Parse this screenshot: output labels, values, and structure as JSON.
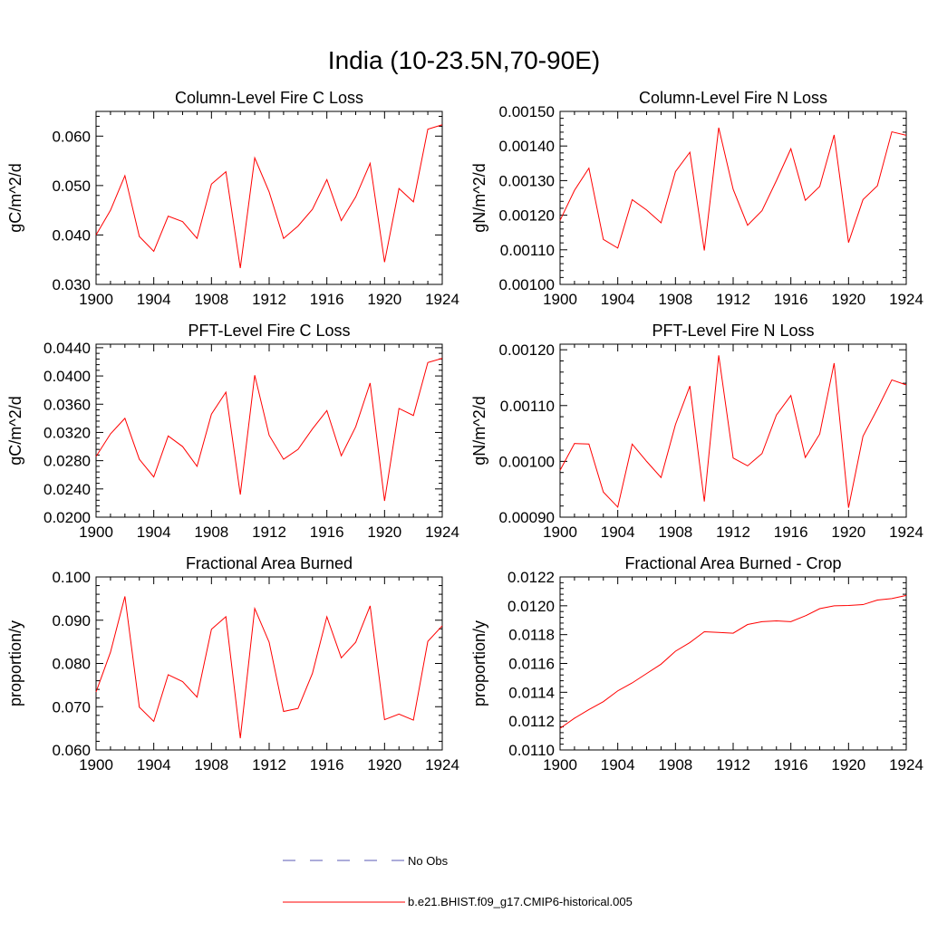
{
  "page_title": "India (10-23.5N,70-90E)",
  "colors": {
    "model": "#ff0000",
    "obs": "#5a5ab4",
    "axis": "#000000"
  },
  "legend": {
    "obs_label": "No Obs",
    "model_label": "b.e21.BHIST.f09_g17.CMIP6-historical.005"
  },
  "chart_data": [
    {
      "type": "line",
      "title": "Column-Level Fire C Loss",
      "ylabel": "gC/m^2/d",
      "xlim": [
        1900,
        1924
      ],
      "ylim": [
        0.03,
        0.065
      ],
      "xticks": [
        1900,
        1904,
        1908,
        1912,
        1916,
        1920,
        1924
      ],
      "yticks": [
        0.03,
        0.04,
        0.05,
        0.06
      ],
      "ytick_labels": [
        "0.030",
        "0.040",
        "0.050",
        "0.060"
      ],
      "x": [
        1900,
        1901,
        1902,
        1903,
        1904,
        1905,
        1906,
        1907,
        1908,
        1909,
        1910,
        1911,
        1912,
        1913,
        1914,
        1915,
        1916,
        1917,
        1918,
        1919,
        1920,
        1921,
        1922,
        1923,
        1924
      ],
      "series": [
        {
          "name": "b.e21.BHIST.f09_g17.CMIP6-historical.005",
          "values": [
            0.04,
            0.045,
            0.052,
            0.0397,
            0.0367,
            0.0438,
            0.0427,
            0.0393,
            0.0503,
            0.0528,
            0.0333,
            0.0556,
            0.0487,
            0.0393,
            0.0418,
            0.0452,
            0.0512,
            0.0429,
            0.0477,
            0.0545,
            0.0345,
            0.0494,
            0.0467,
            0.0614,
            0.0623
          ]
        }
      ]
    },
    {
      "type": "line",
      "title": "Column-Level Fire N Loss",
      "ylabel": "gN/m^2/d",
      "xlim": [
        1900,
        1924
      ],
      "ylim": [
        0.001,
        0.0015
      ],
      "xticks": [
        1900,
        1904,
        1908,
        1912,
        1916,
        1920,
        1924
      ],
      "yticks": [
        0.001,
        0.0011,
        0.0012,
        0.0013,
        0.0014,
        0.0015
      ],
      "ytick_labels": [
        "0.00100",
        "0.00110",
        "0.00120",
        "0.00130",
        "0.00140",
        "0.00150"
      ],
      "x": [
        1900,
        1901,
        1902,
        1903,
        1904,
        1905,
        1906,
        1907,
        1908,
        1909,
        1910,
        1911,
        1912,
        1913,
        1914,
        1915,
        1916,
        1917,
        1918,
        1919,
        1920,
        1921,
        1922,
        1923,
        1924
      ],
      "series": [
        {
          "name": "b.e21.BHIST.f09_g17.CMIP6-historical.005",
          "values": [
            0.001185,
            0.001272,
            0.001336,
            0.00113,
            0.001105,
            0.001245,
            0.001215,
            0.001178,
            0.001326,
            0.001382,
            0.001098,
            0.001453,
            0.001275,
            0.001171,
            0.001213,
            0.0013,
            0.001392,
            0.001243,
            0.001283,
            0.001432,
            0.001121,
            0.001245,
            0.001285,
            0.001441,
            0.001431
          ]
        }
      ]
    },
    {
      "type": "line",
      "title": "PFT-Level Fire C Loss",
      "ylabel": "gC/m^2/d",
      "xlim": [
        1900,
        1924
      ],
      "ylim": [
        0.02,
        0.0445
      ],
      "xticks": [
        1900,
        1904,
        1908,
        1912,
        1916,
        1920,
        1924
      ],
      "yticks": [
        0.02,
        0.024,
        0.028,
        0.032,
        0.036,
        0.04,
        0.044
      ],
      "ytick_labels": [
        "0.0200",
        "0.0240",
        "0.0280",
        "0.0320",
        "0.0360",
        "0.0400",
        "0.0440"
      ],
      "x": [
        1900,
        1901,
        1902,
        1903,
        1904,
        1905,
        1906,
        1907,
        1908,
        1909,
        1910,
        1911,
        1912,
        1913,
        1914,
        1915,
        1916,
        1917,
        1918,
        1919,
        1920,
        1921,
        1922,
        1923,
        1924
      ],
      "series": [
        {
          "name": "b.e21.BHIST.f09_g17.CMIP6-historical.005",
          "values": [
            0.0286,
            0.0318,
            0.034,
            0.0282,
            0.0257,
            0.0315,
            0.03,
            0.0272,
            0.0346,
            0.0377,
            0.0232,
            0.0401,
            0.0316,
            0.0282,
            0.0296,
            0.0325,
            0.0351,
            0.0287,
            0.0328,
            0.039,
            0.0223,
            0.0354,
            0.0344,
            0.0419,
            0.0425
          ]
        }
      ]
    },
    {
      "type": "line",
      "title": "PFT-Level Fire N Loss",
      "ylabel": "gN/m^2/d",
      "xlim": [
        1900,
        1924
      ],
      "ylim": [
        0.0009,
        0.00121
      ],
      "xticks": [
        1900,
        1904,
        1908,
        1912,
        1916,
        1920,
        1924
      ],
      "yticks": [
        0.0009,
        0.001,
        0.0011,
        0.0012
      ],
      "ytick_labels": [
        "0.00090",
        "0.00100",
        "0.00110",
        "0.00120"
      ],
      "x": [
        1900,
        1901,
        1902,
        1903,
        1904,
        1905,
        1906,
        1907,
        1908,
        1909,
        1910,
        1911,
        1912,
        1913,
        1914,
        1915,
        1916,
        1917,
        1918,
        1919,
        1920,
        1921,
        1922,
        1923,
        1924
      ],
      "series": [
        {
          "name": "b.e21.BHIST.f09_g17.CMIP6-historical.005",
          "values": [
            0.000984,
            0.001032,
            0.001031,
            0.000945,
            0.000918,
            0.001031,
            0.001,
            0.000971,
            0.001066,
            0.001135,
            0.000928,
            0.00119,
            0.001006,
            0.000992,
            0.001014,
            0.001083,
            0.001118,
            0.001007,
            0.001049,
            0.001176,
            0.000917,
            0.001045,
            0.001094,
            0.001146,
            0.001137
          ]
        }
      ]
    },
    {
      "type": "line",
      "title": "Fractional Area Burned",
      "ylabel": "proportion/y",
      "xlim": [
        1900,
        1924
      ],
      "ylim": [
        0.06,
        0.1
      ],
      "xticks": [
        1900,
        1904,
        1908,
        1912,
        1916,
        1920,
        1924
      ],
      "yticks": [
        0.06,
        0.07,
        0.08,
        0.09,
        0.1
      ],
      "ytick_labels": [
        "0.060",
        "0.070",
        "0.080",
        "0.090",
        "0.100"
      ],
      "x": [
        1900,
        1901,
        1902,
        1903,
        1904,
        1905,
        1906,
        1907,
        1908,
        1909,
        1910,
        1911,
        1912,
        1913,
        1914,
        1915,
        1916,
        1917,
        1918,
        1919,
        1920,
        1921,
        1922,
        1923,
        1924
      ],
      "series": [
        {
          "name": "b.e21.BHIST.f09_g17.CMIP6-historical.005",
          "values": [
            0.0734,
            0.0826,
            0.0955,
            0.0699,
            0.0666,
            0.0774,
            0.0758,
            0.0722,
            0.0879,
            0.0908,
            0.0627,
            0.0927,
            0.0849,
            0.0689,
            0.0696,
            0.0777,
            0.0908,
            0.0813,
            0.0849,
            0.0933,
            0.067,
            0.0683,
            0.0669,
            0.0851,
            0.0887
          ]
        }
      ]
    },
    {
      "type": "line",
      "title": "Fractional Area Burned - Crop",
      "ylabel": "proportion/y",
      "xlim": [
        1900,
        1924
      ],
      "ylim": [
        0.011,
        0.0122
      ],
      "xticks": [
        1900,
        1904,
        1908,
        1912,
        1916,
        1920,
        1924
      ],
      "yticks": [
        0.011,
        0.0112,
        0.0114,
        0.0116,
        0.0118,
        0.012,
        0.0122
      ],
      "ytick_labels": [
        "0.0110",
        "0.0112",
        "0.0114",
        "0.0116",
        "0.0118",
        "0.0120",
        "0.0122"
      ],
      "x": [
        1900,
        1901,
        1902,
        1903,
        1904,
        1905,
        1906,
        1907,
        1908,
        1909,
        1910,
        1911,
        1912,
        1913,
        1914,
        1915,
        1916,
        1917,
        1918,
        1919,
        1920,
        1921,
        1922,
        1923,
        1924
      ],
      "series": [
        {
          "name": "b.e21.BHIST.f09_g17.CMIP6-historical.005",
          "values": [
            0.01115,
            0.01122,
            0.01128,
            0.011335,
            0.01141,
            0.011465,
            0.01153,
            0.011595,
            0.011685,
            0.011745,
            0.01182,
            0.011815,
            0.01181,
            0.01187,
            0.01189,
            0.011895,
            0.01189,
            0.01193,
            0.01198,
            0.012,
            0.012002,
            0.012008,
            0.01204,
            0.01205,
            0.012072
          ]
        }
      ]
    }
  ]
}
